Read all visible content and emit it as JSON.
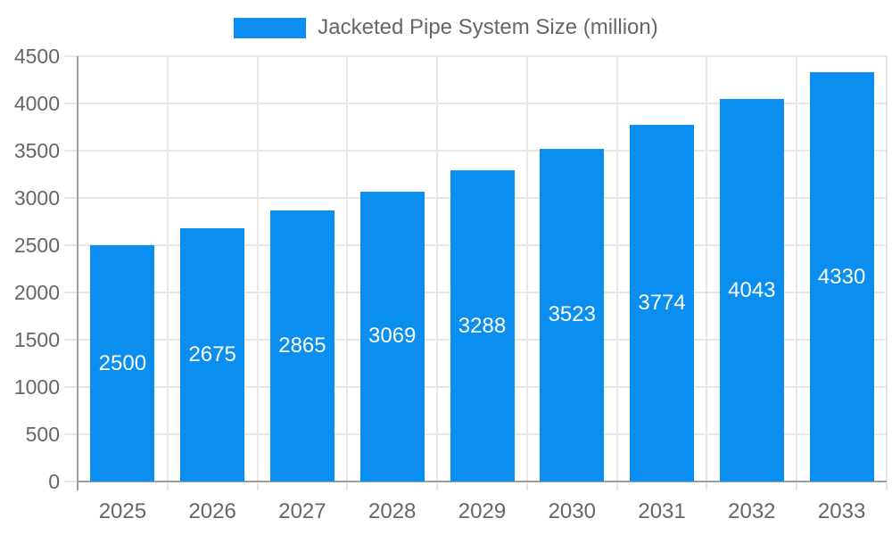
{
  "chart_data": {
    "type": "bar",
    "title": "",
    "legend_position": "top",
    "categories": [
      "2025",
      "2026",
      "2027",
      "2028",
      "2029",
      "2030",
      "2031",
      "2032",
      "2033"
    ],
    "series": [
      {
        "name": "Jacketed Pipe System Size (million)",
        "values": [
          2500,
          2675,
          2865,
          3069,
          3288,
          3523,
          3774,
          4043,
          4330
        ]
      }
    ],
    "data_labels": [
      "2500",
      "2675",
      "2865",
      "3069",
      "3288",
      "3523",
      "3774",
      "4043",
      "4330"
    ],
    "xlabel": "",
    "ylabel": "",
    "ylim": [
      0,
      4500
    ],
    "y_ticks": [
      0,
      500,
      1000,
      1500,
      2000,
      2500,
      3000,
      3500,
      4000,
      4500
    ],
    "grid": "on",
    "colors": {
      "bar": "#0a8ff0",
      "value_label": "#ffffff",
      "tick_text": "#666666",
      "legend_text": "#666666",
      "gridline": "#e6e6e6",
      "axis_line": "#9e9e9e",
      "background": "#ffffff"
    }
  }
}
